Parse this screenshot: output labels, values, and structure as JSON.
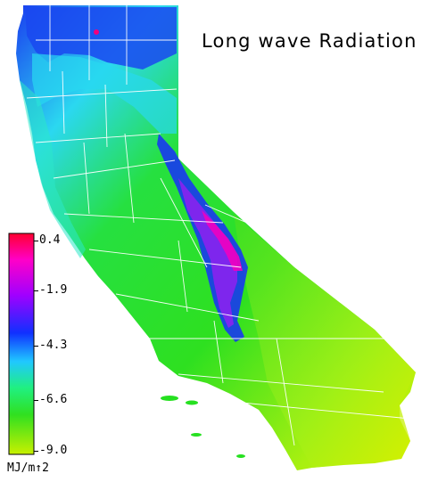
{
  "map": {
    "title": "Long wave Radiation",
    "region": "California",
    "colors": {
      "background": "#ffffff",
      "boundary": "#ffffff",
      "low": "#c8f000",
      "mid_low": "#22e000",
      "mid": "#2ff0d0",
      "mid_high": "#1a3cf0",
      "high": "#a000f0",
      "max": "#ff0040"
    }
  },
  "legend": {
    "unit": "MJ/m↑2",
    "colors": [
      "#ff0030",
      "#ff00c8",
      "#a000ff",
      "#1030ff",
      "#20c8ff",
      "#20f080",
      "#30e020",
      "#c8f000"
    ],
    "ticks": [
      {
        "label": "0.4",
        "value": 0.4
      },
      {
        "label": "-1.9",
        "value": -1.9
      },
      {
        "label": "-4.3",
        "value": -4.3
      },
      {
        "label": "-6.6",
        "value": -6.6
      },
      {
        "label": "-9.0",
        "value": -9.0
      }
    ]
  }
}
